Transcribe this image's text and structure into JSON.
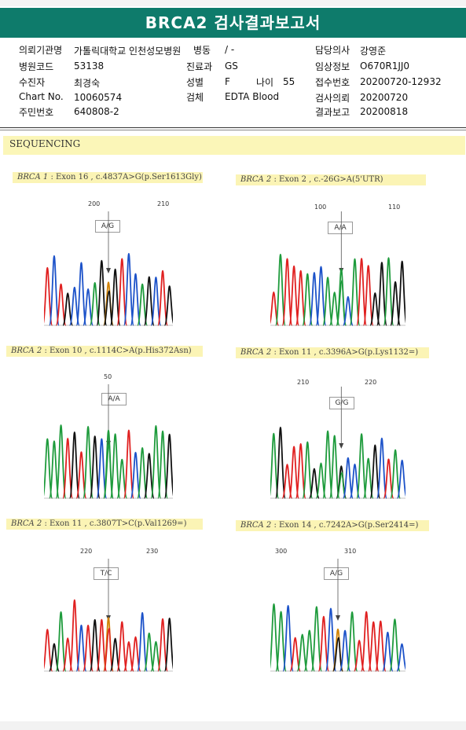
{
  "header": {
    "title": "BRCA2 검사결과보고서"
  },
  "patient": {
    "institution_label": "의뢰기관명",
    "institution_value": "가톨릭대학교 인천성모병원",
    "ward_label": "병동",
    "ward_value": "/ -",
    "doctor_label": "담당의사",
    "doctor_value": "강영준",
    "hospital_code_label": "병원코드",
    "hospital_code_value": "53138",
    "department_label": "진료과",
    "department_value": "GS",
    "clinical_info_label": "임상정보",
    "clinical_info_value": "O670R1JJ0",
    "name_label": "수진자",
    "name_value": "최경숙",
    "sex_label": "성별",
    "sex_value": "F",
    "age_label": "나이",
    "age_value": "55",
    "receipt_label": "접수번호",
    "receipt_value": "20200720-12932",
    "chart_label": "Chart No.",
    "chart_value": "10060574",
    "specimen_label": "검체",
    "specimen_value": "EDTA Blood",
    "request_label": "검사의뢰",
    "request_value": "20200720",
    "id_label": "주민번호",
    "id_value": "640808-2",
    "report_label": "결과보고",
    "report_value": "20200818"
  },
  "section": {
    "title": "SEQUENCING"
  },
  "panels": [
    {
      "gene": "BRCA 1",
      "desc": " : Exon 16 , c.4837A>G(p.Ser1613Gly)",
      "seq": "TCTGCCCAGRGTCCAGCTG",
      "pos1": "200",
      "pos2": "210",
      "genotype": "A/G",
      "seed": 11
    },
    {
      "gene": "BRCA 2",
      "desc": " : Exon 2 , c.-26G>A(5'UTR)",
      "seq": "TATTTACCAAACATTGGAGG",
      "pos1": "100",
      "pos2": "110",
      "genotype": "A/A",
      "seed": 23
    },
    {
      "gene": "BRCA 2",
      "desc": " : Exon 10 , c.1114C>A(p.His372Asn)",
      "seq": "AAATGTAGCAAATCAGAAG",
      "pos1": "50",
      "pos2": "",
      "genotype": "A/A",
      "seed": 37
    },
    {
      "gene": "BRCA 2",
      "desc": " : Exon 11 , c.3396A>G(p.Lys1132=)",
      "seq": "AGTTTAGAAAGCCAAGCTAC",
      "pos1": "210",
      "pos2": "220",
      "genotype": "G/G",
      "seed": 41
    },
    {
      "gene": "BRCA 2",
      "desc": " : Exon 11 , c.3807T>C(p.Val1269=)",
      "seq": "TGATTCTGTYGTTTCAATG",
      "pos1": "220",
      "pos2": "230",
      "genotype": "T/C",
      "seed": 53
    },
    {
      "gene": "BRCA 2",
      "desc": " : Exon 14 , c.7242A>G(p.Ser2414=)",
      "seq": "AACTAAATCRCATTTTCAC",
      "pos1": "300",
      "pos2": "310",
      "genotype": "A/G",
      "seed": 67
    }
  ],
  "colors": {
    "A": "#1e9b3c",
    "C": "#1c52c9",
    "G": "#111111",
    "T": "#e02020",
    "R": "#d08000",
    "Y": "#d08000",
    "accent": "#0e7b6b"
  }
}
